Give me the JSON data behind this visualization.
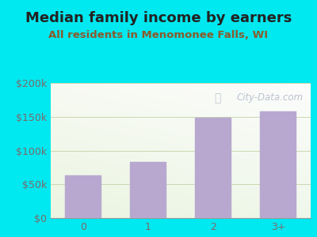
{
  "title": "Median family income by earners",
  "subtitle": "All residents in Menomonee Falls, WI",
  "categories": [
    "0",
    "1",
    "2",
    "3+"
  ],
  "values": [
    63000,
    83000,
    148000,
    158000
  ],
  "bar_color": "#b8a8d0",
  "bar_edge_color": "#b8a8d0",
  "ylim": [
    0,
    200000
  ],
  "yticks": [
    0,
    50000,
    100000,
    150000,
    200000
  ],
  "ytick_labels": [
    "$0",
    "$50k",
    "$100k",
    "$150k",
    "$200k"
  ],
  "title_color": "#222222",
  "subtitle_color": "#8b5a2b",
  "outer_bg_color": "#00e8f0",
  "plot_bg_color": "#e8f0e0",
  "grid_color": "#c8d8b0",
  "watermark_text": "City-Data.com",
  "title_fontsize": 13,
  "subtitle_fontsize": 9.5,
  "tick_color": "#7a6a6a",
  "tick_fontsize": 9
}
